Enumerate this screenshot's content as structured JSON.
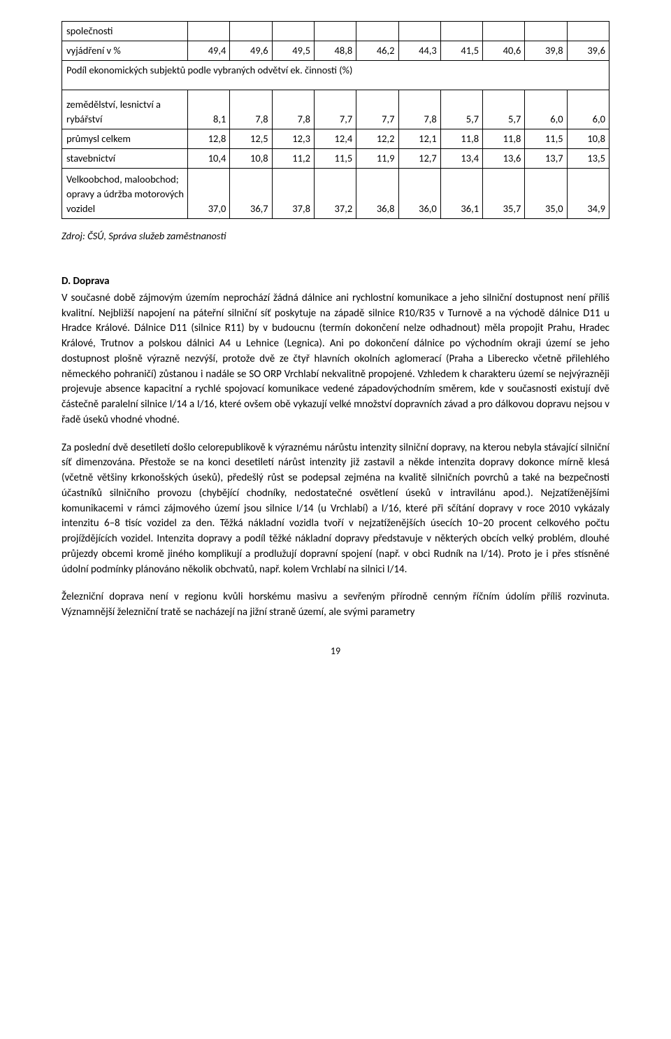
{
  "table": {
    "rows": [
      {
        "label": "společnosti",
        "vals": [
          "",
          "",
          "",
          "",
          "",
          "",
          "",
          "",
          "",
          ""
        ],
        "cls": "label-top"
      },
      {
        "label": "vyjádření v %",
        "vals": [
          "49,4",
          "49,6",
          "49,5",
          "48,8",
          "46,2",
          "44,3",
          "41,5",
          "40,6",
          "39,8",
          "39,6"
        ]
      },
      {
        "section": "Podíl ekonomických subjektů podle vybraných odvětví ek. činnosti (%)",
        "rowspan": true
      },
      {
        "label": "zemědělství, lesnictví a rybářství",
        "vals": [
          "8,1",
          "7,8",
          "7,8",
          "7,7",
          "7,7",
          "7,8",
          "5,7",
          "5,7",
          "6,0",
          "6,0"
        ],
        "tall": 1
      },
      {
        "label": "průmysl celkem",
        "vals": [
          "12,8",
          "12,5",
          "12,3",
          "12,4",
          "12,2",
          "12,1",
          "11,8",
          "11,8",
          "11,5",
          "10,8"
        ]
      },
      {
        "label": "stavebnictví",
        "vals": [
          "10,4",
          "10,8",
          "11,2",
          "11,5",
          "11,9",
          "12,7",
          "13,4",
          "13,6",
          "13,7",
          "13,5"
        ]
      },
      {
        "label": "Velkoobchod, maloobchod; opravy a údržba motorových vozidel",
        "vals": [
          "37,0",
          "36,7",
          "37,8",
          "37,2",
          "36,8",
          "36,0",
          "36,1",
          "35,7",
          "35,0",
          "34,9"
        ],
        "tall": 2
      }
    ]
  },
  "source_line": "Zdroj:  ČSÚ, Správa služeb zaměstnanosti",
  "heading_d": "D. Doprava",
  "para1": "V současné době zájmovým územím neprochází žádná dálnice ani rychlostní komunikace a jeho silniční dostupnost není příliš kvalitní. Nejbližší napojení na páteřní silniční síť poskytuje na západě silnice R10/R35 v Turnově a na východě dálnice D11 u Hradce Králové. Dálnice D11 (silnice R11) by v budoucnu (termín dokončení nelze odhadnout) měla propojit Prahu, Hradec Králové, Trutnov a polskou dálnici A4 u Lehnice (Legnica). Ani po dokončení dálnice po východním okraji území se jeho dostupnost plošně výrazně nezvýší, protože dvě ze čtyř hlavních okolních aglomerací (Praha a Liberecko včetně přilehlého německého pohraničí) zůstanou i nadále se SO ORP Vrchlabí nekvalitně propojené. Vzhledem k charakteru území se nejvýrazněji projevuje absence kapacitní a rychlé spojovací komunikace vedené západovýchodním směrem, kde v současnosti existují dvě částečně paralelní silnice I/14 a I/16, které ovšem obě vykazují velké množství dopravních závad a pro dálkovou dopravu nejsou v řadě úseků vhodné vhodné.",
  "para2": "Za poslední dvě desetiletí došlo celorepublikově k výraznému nárůstu intenzity silniční dopravy, na kterou nebyla stávající silniční síť dimenzována. Přestože se na konci desetiletí nárůst intenzity již zastavil a někde intenzita dopravy dokonce mírně klesá (včetně většiny krkonošských úseků), předešlý růst se podepsal zejména na kvalitě silničních povrchů a také na bezpečnosti účastníků silničního provozu (chybějící chodníky, nedostatečné osvětlení úseků v intravilánu apod.). Nejzatíženějšími komunikacemi v rámci zájmového území jsou silnice I/14 (u Vrchlabí) a I/16, které při sčítání dopravy v roce 2010 vykázaly intenzitu 6–8 tisíc vozidel za den. Těžká nákladní vozidla tvoří v nejzatíženějších úsecích 10–20 procent celkového počtu projíždějících vozidel. Intenzita dopravy a podíl těžké nákladní dopravy představuje v některých obcích velký problém, dlouhé průjezdy obcemi kromě jiného komplikují a prodlužují dopravní spojení (např. v obci Rudník na I/14). Proto je i přes stísněné údolní podmínky plánováno několik obchvatů, např. kolem Vrchlabí na silnici I/14.",
  "para3": "Železniční doprava není v regionu kvůli horskému masivu a sevřeným přírodně cenným říčním údolím příliš rozvinuta. Významnější železniční tratě se nacházejí na jižní straně území, ale svými parametry",
  "page_number": "19"
}
